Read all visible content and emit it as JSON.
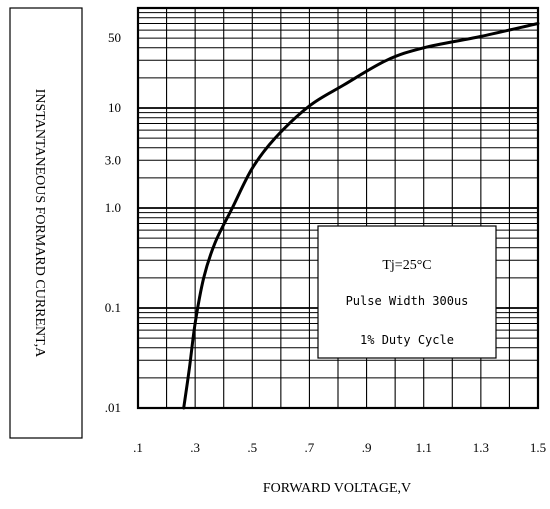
{
  "chart_data": {
    "type": "line",
    "title": "",
    "xlabel": "FORWARD VOLTAGE,V",
    "ylabel": "INSTANTANEOUS FORMARD CURRENT,A",
    "x_scale": "linear",
    "y_scale": "log",
    "xlim": [
      0.1,
      1.5
    ],
    "ylim": [
      0.01,
      100
    ],
    "grid": true,
    "x_ticks": [
      {
        "value": 0.1,
        "label": ".1"
      },
      {
        "value": 0.3,
        "label": ".3"
      },
      {
        "value": 0.5,
        "label": ".5"
      },
      {
        "value": 0.7,
        "label": ".7"
      },
      {
        "value": 0.9,
        "label": ".9"
      },
      {
        "value": 1.1,
        "label": "1.1"
      },
      {
        "value": 1.3,
        "label": "1.3"
      },
      {
        "value": 1.5,
        "label": "1.5"
      }
    ],
    "y_ticks": [
      {
        "value": 0.01,
        "label": ".01"
      },
      {
        "value": 0.1,
        "label": "0.1"
      },
      {
        "value": 1.0,
        "label": "1.0"
      },
      {
        "value": 3.0,
        "label": "3.0"
      },
      {
        "value": 10,
        "label": "10"
      },
      {
        "value": 50,
        "label": "50"
      }
    ],
    "series": [
      {
        "points": [
          [
            0.26,
            0.01
          ],
          [
            0.28,
            0.025
          ],
          [
            0.3,
            0.07
          ],
          [
            0.33,
            0.2
          ],
          [
            0.37,
            0.45
          ],
          [
            0.43,
            1.0
          ],
          [
            0.5,
            2.5
          ],
          [
            0.58,
            5.0
          ],
          [
            0.7,
            10.5
          ],
          [
            0.82,
            17
          ],
          [
            0.97,
            30
          ],
          [
            1.1,
            40
          ],
          [
            1.3,
            52
          ],
          [
            1.5,
            70
          ]
        ]
      }
    ],
    "annotation": {
      "lines": [
        "Tj=25°C",
        "Pulse Width 300us",
        "1% Duty Cycle"
      ]
    }
  }
}
